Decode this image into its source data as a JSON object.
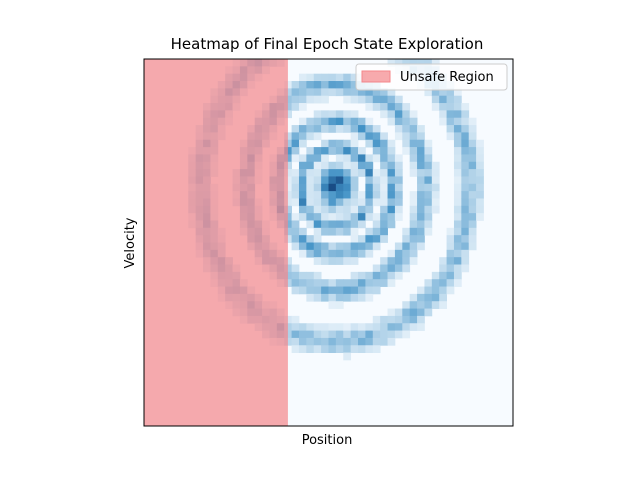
{
  "chart_data": {
    "type": "heatmap",
    "title": "Heatmap of Final Epoch State Exploration",
    "xlabel": "Position",
    "ylabel": "Velocity",
    "ticks_shown": false,
    "grid": false,
    "legend": {
      "placement": "top-right",
      "entries": [
        {
          "label": "Unsafe Region",
          "color": "#f4868a"
        }
      ]
    },
    "colormap": "Blues",
    "colormap_low": "#f7fbff",
    "colormap_high": "#08306b",
    "overlay": {
      "label": "Unsafe Region",
      "color": "#f4868a",
      "opacity": 0.7,
      "x_fraction_start": 0.0,
      "x_fraction_end": 0.39
    },
    "pattern": "concentric orbits of visit density around a center point, densest near the center"
  }
}
